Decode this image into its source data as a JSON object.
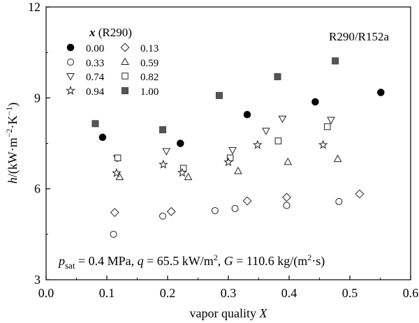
{
  "chart_data": {
    "type": "scatter",
    "title": "",
    "system_label": "R290/R152a",
    "condition_text": {
      "p_sym": "p",
      "p_sub": "sat",
      "p_rest": " = 0.4 MPa, ",
      "q_sym": "q",
      "q_rest": " = 65.5 kW/m",
      "q_sup": "2",
      "q_sep": ", ",
      "G_sym": "G",
      "G_rest": " = 110.6 kg/(m",
      "G_sup": "2",
      "G_end": "·s)"
    },
    "xlabel": {
      "prefix": "vapor quality ",
      "symbol": "X"
    },
    "ylabel": {
      "symbol": "h",
      "unit_a": "/(kW·m",
      "sup_a": "−2",
      "unit_b": "·K",
      "sup_b": "−1",
      "unit_c": ")"
    },
    "xlim": [
      0.0,
      0.6
    ],
    "ylim": [
      3,
      12
    ],
    "xticks": [
      0.0,
      0.1,
      0.2,
      0.3,
      0.4,
      0.5,
      0.6
    ],
    "yticks": [
      3,
      6,
      9,
      12
    ],
    "xtick_labels": [
      "0.0",
      "0.1",
      "0.2",
      "0.3",
      "0.4",
      "0.5",
      "0.6"
    ],
    "ytick_labels": [
      "3",
      "6",
      "9",
      "12"
    ],
    "legend": {
      "title_symbol": "x",
      "title_rest": " (R290)",
      "position": "top-left"
    },
    "series": [
      {
        "name": "0.00",
        "marker": "filled-circle",
        "x": [
          0.093,
          0.221,
          0.331,
          0.443,
          0.551
        ],
        "y": [
          7.7,
          7.5,
          8.45,
          8.87,
          9.18
        ]
      },
      {
        "name": "0.13",
        "marker": "diamond",
        "x": [
          0.113,
          0.206,
          0.331,
          0.396,
          0.516
        ],
        "y": [
          5.22,
          5.25,
          5.6,
          5.72,
          5.83
        ]
      },
      {
        "name": "0.33",
        "marker": "circle",
        "x": [
          0.111,
          0.192,
          0.278,
          0.311,
          0.396,
          0.482
        ],
        "y": [
          4.5,
          5.1,
          5.28,
          5.35,
          5.45,
          5.58
        ]
      },
      {
        "name": "0.59",
        "marker": "triangle-up",
        "x": [
          0.121,
          0.234,
          0.316,
          0.398,
          0.48
        ],
        "y": [
          6.38,
          6.38,
          6.58,
          6.88,
          6.98
        ]
      },
      {
        "name": "0.74",
        "marker": "triangle-down",
        "x": [
          0.117,
          0.198,
          0.307,
          0.362,
          0.389,
          0.469
        ],
        "y": [
          7.02,
          7.25,
          7.28,
          7.92,
          8.32,
          8.28
        ]
      },
      {
        "name": "0.82",
        "marker": "square",
        "x": [
          0.118,
          0.226,
          0.303,
          0.382,
          0.463
        ],
        "y": [
          7.02,
          6.68,
          7.02,
          7.58,
          8.05
        ]
      },
      {
        "name": "0.94",
        "marker": "star",
        "x": [
          0.116,
          0.193,
          0.224,
          0.3,
          0.348,
          0.456
        ],
        "y": [
          6.52,
          6.8,
          6.53,
          6.88,
          7.45,
          7.45
        ]
      },
      {
        "name": "1.00",
        "marker": "filled-square",
        "x": [
          0.081,
          0.192,
          0.285,
          0.381,
          0.476
        ],
        "y": [
          8.15,
          7.95,
          9.08,
          9.7,
          10.22
        ]
      }
    ]
  }
}
